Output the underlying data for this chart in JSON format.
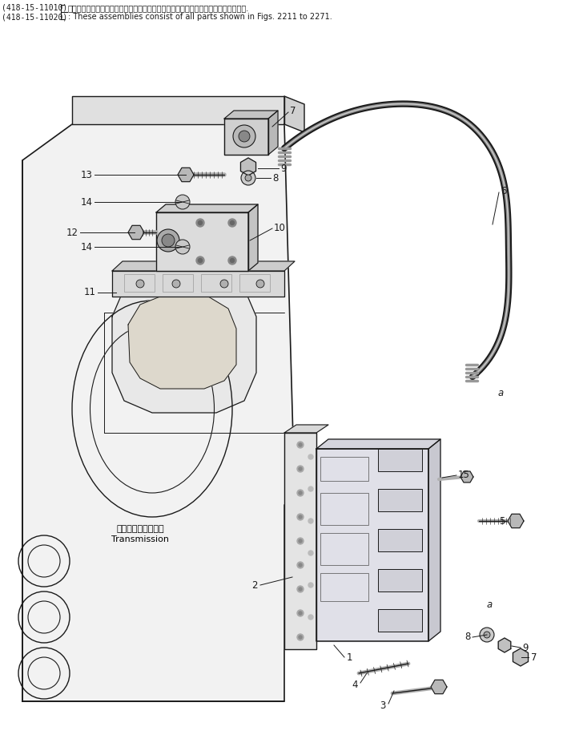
{
  "bg_color": "#ffffff",
  "line_color": "#1a1a1a",
  "label_color": "#000000",
  "font_size_header": 7.0,
  "font_size_label": 8.5,
  "header_line1_left": "(418-15-11010)",
  "header_line1_right": "：これらのアセンブリの構成部品は第２２１１図から第２２７１図の部品を含みます.",
  "header_line2_left": "(418-15-11020)",
  "header_line2_right": ": These assemblies consist of all parts shown in Figs. 2211 to 2271.",
  "transmission_text_jp": "トランスミッション",
  "transmission_text_en": "Transmission"
}
